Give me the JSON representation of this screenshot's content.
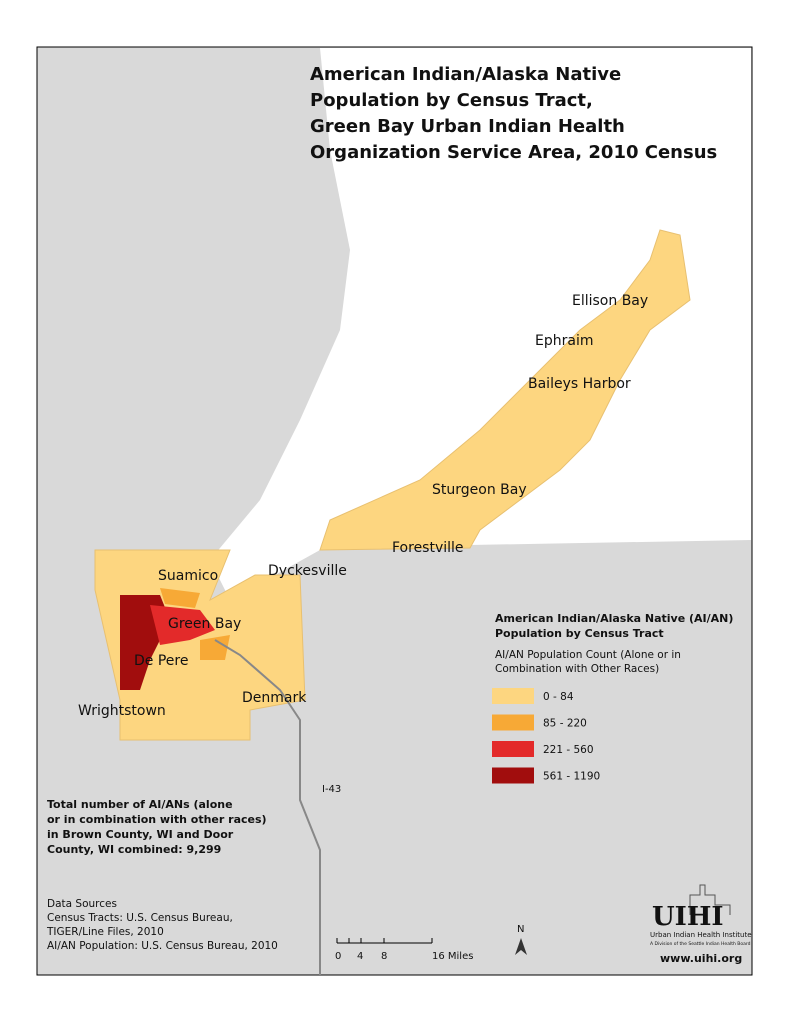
{
  "title": [
    "American Indian/Alaska Native",
    "Population by Census Tract,",
    "Green Bay Urban Indian Health",
    "Organization Service Area, 2010 Census"
  ],
  "places": [
    "Ellison Bay",
    "Ephraim",
    "Baileys Harbor",
    "Sturgeon Bay",
    "Forestville",
    "Dyckesville",
    "Suamico",
    "Green Bay",
    "De Pere",
    "Denmark",
    "Wrightstown"
  ],
  "highway": "I-43",
  "legend": {
    "title": [
      "American Indian/Alaska Native (AI/AN)",
      "Population by Census Tract"
    ],
    "subtitle": [
      "AI/AN Population Count (Alone or in",
      "Combination with Other Races)"
    ],
    "classes": [
      {
        "label": "0 - 84",
        "color": "#fdd680"
      },
      {
        "label": "85 - 220",
        "color": "#f7a936"
      },
      {
        "label": "221 - 560",
        "color": "#e32a2a"
      },
      {
        "label": "561 - 1190",
        "color": "#a10d0d"
      }
    ]
  },
  "total_note": [
    "Total number of AI/ANs (alone",
    "or in combination with other races)",
    "in Brown County, WI and Door",
    "County, WI combined: 9,299"
  ],
  "sources": [
    "Data Sources",
    "Census Tracts: U.S. Census Bureau,",
    "TIGER/Line Files, 2010",
    "AI/AN Population: U.S. Census Bureau, 2010"
  ],
  "scale": [
    "0",
    "4",
    "8",
    "16 Miles"
  ],
  "north": "N",
  "logo": {
    "name": "UIHI",
    "tagline": "Urban Indian Health Institute",
    "sub": "A Division of the Seattle Indian Health Board",
    "url": "www.uihi.org"
  }
}
